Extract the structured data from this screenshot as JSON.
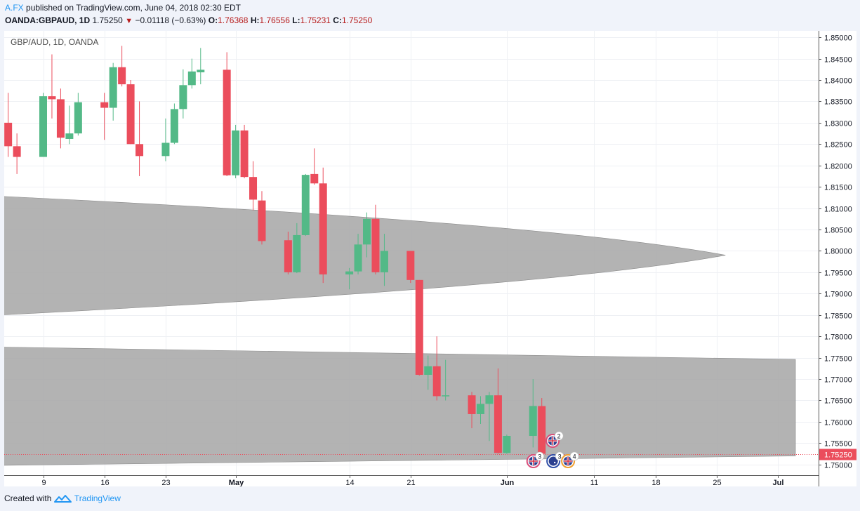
{
  "header": {
    "author": "A.FX",
    "published_text": "published on TradingView.com, June 04, 2018 02:30 EDT",
    "symbol": "OANDA:GBPAUD, 1D",
    "price": "1.75250",
    "change": "−0.01118 (−0.63%)",
    "ohlc": {
      "o_label": "O:",
      "o": "1.76368",
      "h_label": "H:",
      "h": "1.76556",
      "l_label": "L:",
      "l": "1.75231",
      "c_label": "C:",
      "c": "1.75250"
    }
  },
  "footer": {
    "created_with": "Created with",
    "brand": "TradingView"
  },
  "colors": {
    "up": "#53b987",
    "down": "#eb4d5c",
    "band": "#a6a6a6",
    "background": "#ffffff"
  },
  "chart_data": {
    "type": "candlestick",
    "title": "GBP/AUD, 1D, OANDA",
    "ylim": [
      1.7475,
      1.8515
    ],
    "y_ticks": [
      "1.85000",
      "1.84500",
      "1.84000",
      "1.83500",
      "1.83000",
      "1.82500",
      "1.82000",
      "1.81500",
      "1.81000",
      "1.80500",
      "1.80000",
      "1.79500",
      "1.79000",
      "1.78500",
      "1.78000",
      "1.77500",
      "1.77000",
      "1.76500",
      "1.76000",
      "1.75500",
      "1.75000"
    ],
    "x_ticks": [
      "9",
      "16",
      "23",
      "May",
      "14",
      "21",
      "Jun",
      "11",
      "18",
      "25",
      "Jul"
    ],
    "candles": [
      {
        "date": "2018-04-05",
        "o": 1.83,
        "h": 1.837,
        "l": 1.822,
        "c": 1.8245
      },
      {
        "date": "2018-04-06",
        "o": 1.8245,
        "h": 1.8275,
        "l": 1.818,
        "c": 1.822
      },
      {
        "date": "2018-04-09",
        "o": 1.822,
        "h": 1.837,
        "l": 1.822,
        "c": 1.8362
      },
      {
        "date": "2018-04-10",
        "o": 1.8362,
        "h": 1.846,
        "l": 1.831,
        "c": 1.8355
      },
      {
        "date": "2018-04-11",
        "o": 1.8355,
        "h": 1.838,
        "l": 1.824,
        "c": 1.8265
      },
      {
        "date": "2018-04-12",
        "o": 1.8262,
        "h": 1.834,
        "l": 1.825,
        "c": 1.8275
      },
      {
        "date": "2018-04-13",
        "o": 1.8275,
        "h": 1.837,
        "l": 1.827,
        "c": 1.8348
      },
      {
        "date": "2018-04-16",
        "o": 1.8348,
        "h": 1.837,
        "l": 1.826,
        "c": 1.8335
      },
      {
        "date": "2018-04-17",
        "o": 1.8335,
        "h": 1.844,
        "l": 1.8305,
        "c": 1.843
      },
      {
        "date": "2018-04-18",
        "o": 1.843,
        "h": 1.848,
        "l": 1.8385,
        "c": 1.839
      },
      {
        "date": "2018-04-19",
        "o": 1.839,
        "h": 1.84,
        "l": 1.825,
        "c": 1.825
      },
      {
        "date": "2018-04-20",
        "o": 1.825,
        "h": 1.835,
        "l": 1.8175,
        "c": 1.8222
      },
      {
        "date": "2018-04-23",
        "o": 1.8222,
        "h": 1.831,
        "l": 1.821,
        "c": 1.8253
      },
      {
        "date": "2018-04-24",
        "o": 1.8253,
        "h": 1.8345,
        "l": 1.825,
        "c": 1.8332
      },
      {
        "date": "2018-04-25",
        "o": 1.8332,
        "h": 1.8425,
        "l": 1.831,
        "c": 1.8388
      },
      {
        "date": "2018-04-26",
        "o": 1.8388,
        "h": 1.845,
        "l": 1.838,
        "c": 1.842
      },
      {
        "date": "2018-04-27",
        "o": 1.8418,
        "h": 1.8475,
        "l": 1.839,
        "c": 1.8424
      },
      {
        "date": "2018-04-30",
        "o": 1.8424,
        "h": 1.8465,
        "l": 1.8175,
        "c": 1.8177
      },
      {
        "date": "2018-05-01",
        "o": 1.8177,
        "h": 1.8295,
        "l": 1.817,
        "c": 1.8282
      },
      {
        "date": "2018-05-02",
        "o": 1.8282,
        "h": 1.8295,
        "l": 1.817,
        "c": 1.8173
      },
      {
        "date": "2018-05-03",
        "o": 1.8173,
        "h": 1.821,
        "l": 1.8095,
        "c": 1.812
      },
      {
        "date": "2018-05-04",
        "o": 1.8118,
        "h": 1.814,
        "l": 1.8015,
        "c": 1.8023
      },
      {
        "date": "2018-05-07",
        "o": 1.8025,
        "h": 1.8045,
        "l": 1.7945,
        "c": 1.795
      },
      {
        "date": "2018-05-08",
        "o": 1.795,
        "h": 1.8065,
        "l": 1.7948,
        "c": 1.8037
      },
      {
        "date": "2018-05-09",
        "o": 1.8037,
        "h": 1.818,
        "l": 1.8035,
        "c": 1.8178
      },
      {
        "date": "2018-05-10",
        "o": 1.818,
        "h": 1.824,
        "l": 1.8155,
        "c": 1.8158
      },
      {
        "date": "2018-05-11",
        "o": 1.8158,
        "h": 1.8195,
        "l": 1.7925,
        "c": 1.7945
      },
      {
        "date": "2018-05-14",
        "o": 1.7945,
        "h": 1.796,
        "l": 1.791,
        "c": 1.7952
      },
      {
        "date": "2018-05-15",
        "o": 1.7952,
        "h": 1.804,
        "l": 1.7945,
        "c": 1.8015
      },
      {
        "date": "2018-05-16",
        "o": 1.8015,
        "h": 1.809,
        "l": 1.7985,
        "c": 1.8075
      },
      {
        "date": "2018-05-17",
        "o": 1.8075,
        "h": 1.8108,
        "l": 1.7945,
        "c": 1.795
      },
      {
        "date": "2018-05-18",
        "o": 1.795,
        "h": 1.804,
        "l": 1.7918,
        "c": 1.8
      },
      {
        "date": "2018-05-21",
        "o": 1.8,
        "h": 1.8,
        "l": 1.7925,
        "c": 1.7932
      },
      {
        "date": "2018-05-22",
        "o": 1.7932,
        "h": 1.7932,
        "l": 1.7708,
        "c": 1.771
      },
      {
        "date": "2018-05-23",
        "o": 1.771,
        "h": 1.7755,
        "l": 1.7675,
        "c": 1.773
      },
      {
        "date": "2018-05-24",
        "o": 1.773,
        "h": 1.78,
        "l": 1.765,
        "c": 1.766
      },
      {
        "date": "2018-05-25",
        "o": 1.766,
        "h": 1.7745,
        "l": 1.765,
        "c": 1.7662
      },
      {
        "date": "2018-05-28",
        "o": 1.7662,
        "h": 1.767,
        "l": 1.7585,
        "c": 1.7618
      },
      {
        "date": "2018-05-29",
        "o": 1.7618,
        "h": 1.766,
        "l": 1.7595,
        "c": 1.7642
      },
      {
        "date": "2018-05-30",
        "o": 1.7642,
        "h": 1.767,
        "l": 1.7555,
        "c": 1.7662
      },
      {
        "date": "2018-05-31",
        "o": 1.7662,
        "h": 1.7725,
        "l": 1.7525,
        "c": 1.7527
      },
      {
        "date": "2018-06-01",
        "o": 1.7527,
        "h": 1.757,
        "l": 1.7525,
        "c": 1.7567
      },
      {
        "date": "2018-06-04",
        "o": 1.7567,
        "h": 1.77,
        "l": 1.754,
        "c": 1.7637
      },
      {
        "date": "2018-06-05",
        "o": 1.76368,
        "h": 1.76556,
        "l": 1.75231,
        "c": 1.7525
      }
    ],
    "current_price": 1.7525,
    "events": [
      {
        "date": "2018-06-06",
        "flag": "uk",
        "count": "2"
      },
      {
        "date": "2018-06-05",
        "flag": "uk",
        "count": "3"
      },
      {
        "date": "2018-06-06",
        "flag": "au",
        "count": "3"
      },
      {
        "date": "2018-06-08",
        "flag": "uk",
        "count": "4"
      }
    ],
    "shaded_bands": [
      {
        "upper": [
          [
            "2018-04-04",
            1.8128
          ],
          [
            "2018-06-06",
            1.8066
          ],
          [
            "2018-06-26",
            1.8
          ]
        ],
        "lower": [
          [
            "2018-04-04",
            1.785
          ],
          [
            "2018-06-06",
            1.7915
          ],
          [
            "2018-06-26",
            1.798
          ]
        ]
      },
      {
        "upper": [
          [
            "2018-04-04",
            1.7775
          ],
          [
            "2018-07-04",
            1.7746
          ]
        ],
        "lower": [
          [
            "2018-04-04",
            1.7498
          ],
          [
            "2018-07-04",
            1.752
          ]
        ]
      }
    ]
  }
}
